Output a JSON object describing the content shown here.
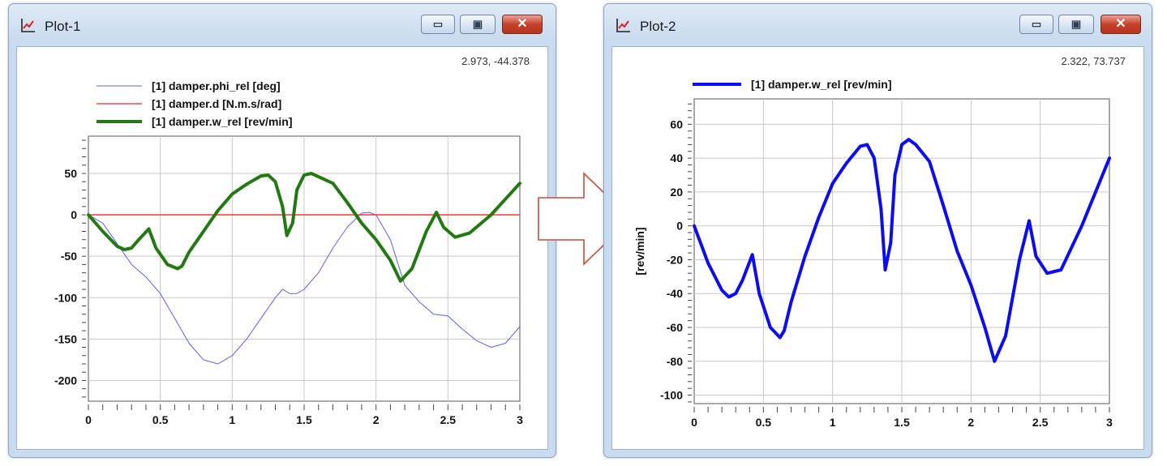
{
  "plots": [
    {
      "title": "Plot-1",
      "coordinates": "2.973, -44.378",
      "legend": [
        {
          "label": "[1] damper.phi_rel [deg]",
          "color": "#5f5ff0",
          "width": 1
        },
        {
          "label": "[1] damper.d [N.m.s/rad]",
          "color": "#f04848",
          "width": 1.6
        },
        {
          "label": "[1] damper.w_rel [rev/min]",
          "color": "#207a10",
          "width": 4
        }
      ],
      "chart_data": {
        "type": "line",
        "xlim": [
          0,
          3
        ],
        "ylim": [
          -225,
          95
        ],
        "x_ticks": [
          "0",
          "0.5",
          "1",
          "1.5",
          "2",
          "2.5",
          "3"
        ],
        "y_ticks": [
          "50",
          "0",
          "-50",
          "-100",
          "-150",
          "-200"
        ],
        "ylabel": "",
        "grid": true,
        "series": [
          {
            "name": "[1] damper.phi_rel [deg]",
            "color": "#5f5ff0",
            "x": [
              0,
              0.1,
              0.2,
              0.3,
              0.4,
              0.5,
              0.6,
              0.7,
              0.8,
              0.9,
              1.0,
              1.1,
              1.2,
              1.3,
              1.35,
              1.4,
              1.45,
              1.5,
              1.6,
              1.7,
              1.8,
              1.9,
              1.95,
              2.0,
              2.1,
              2.2,
              2.3,
              2.4,
              2.5,
              2.6,
              2.7,
              2.8,
              2.9,
              3.0
            ],
            "y": [
              0,
              -10,
              -35,
              -60,
              -75,
              -95,
              -125,
              -155,
              -175,
              -180,
              -170,
              -150,
              -125,
              -100,
              -90,
              -95,
              -95,
              -90,
              -70,
              -40,
              -15,
              2,
              3,
              0,
              -30,
              -85,
              -105,
              -120,
              -122,
              -138,
              -152,
              -160,
              -155,
              -135
            ]
          },
          {
            "name": "[1] damper.d [N.m.s/rad]",
            "color": "#f04848",
            "x": [
              0,
              3.0
            ],
            "y": [
              0,
              0
            ]
          },
          {
            "name": "[1] damper.w_rel [rev/min]",
            "color": "#207a10",
            "x": [
              0,
              0.1,
              0.2,
              0.25,
              0.3,
              0.35,
              0.42,
              0.47,
              0.55,
              0.62,
              0.65,
              0.7,
              0.8,
              0.9,
              1.0,
              1.1,
              1.2,
              1.25,
              1.3,
              1.35,
              1.38,
              1.42,
              1.45,
              1.5,
              1.55,
              1.6,
              1.7,
              1.8,
              1.9,
              2.0,
              2.1,
              2.17,
              2.25,
              2.35,
              2.42,
              2.47,
              2.55,
              2.65,
              2.8,
              3.0
            ],
            "y": [
              0,
              -20,
              -38,
              -42,
              -40,
              -30,
              -17,
              -40,
              -60,
              -65,
              -62,
              -45,
              -20,
              5,
              25,
              37,
              47,
              48,
              40,
              10,
              -25,
              -10,
              30,
              48,
              50,
              46,
              38,
              15,
              -10,
              -30,
              -55,
              -80,
              -65,
              -20,
              3,
              -15,
              -27,
              -22,
              0,
              38
            ]
          }
        ]
      }
    },
    {
      "title": "Plot-2",
      "coordinates": "2.322, 73.737",
      "legend": [
        {
          "label": "[1] damper.w_rel [rev/min]",
          "color": "#0b0bf5",
          "width": 4
        }
      ],
      "chart_data": {
        "type": "line",
        "xlim": [
          0,
          3
        ],
        "ylim": [
          -105,
          75
        ],
        "x_ticks": [
          "0",
          "0.5",
          "1",
          "1.5",
          "2",
          "2.5",
          "3"
        ],
        "y_ticks": [
          "60",
          "40",
          "20",
          "0",
          "-20",
          "-40",
          "-60",
          "-80",
          "-100"
        ],
        "ylabel": "[rev/min]",
        "grid": true,
        "series": [
          {
            "name": "[1] damper.w_rel [rev/min]",
            "color": "#0b0bf5",
            "x": [
              0,
              0.1,
              0.2,
              0.25,
              0.3,
              0.35,
              0.42,
              0.47,
              0.55,
              0.62,
              0.65,
              0.7,
              0.8,
              0.9,
              1.0,
              1.1,
              1.2,
              1.25,
              1.3,
              1.35,
              1.38,
              1.42,
              1.45,
              1.5,
              1.55,
              1.6,
              1.7,
              1.8,
              1.9,
              2.0,
              2.1,
              2.17,
              2.25,
              2.35,
              2.42,
              2.47,
              2.55,
              2.65,
              2.8,
              3.0
            ],
            "y": [
              0,
              -22,
              -38,
              -42,
              -40,
              -32,
              -17,
              -40,
              -60,
              -66,
              -62,
              -45,
              -18,
              5,
              25,
              37,
              47,
              48,
              40,
              10,
              -26,
              -10,
              30,
              48,
              51,
              48,
              38,
              12,
              -15,
              -35,
              -60,
              -80,
              -65,
              -20,
              3,
              -18,
              -28,
              -26,
              0,
              40
            ]
          }
        ]
      }
    }
  ],
  "arrow": {
    "fill": "#ffffff",
    "stroke": "#d24a3c"
  }
}
